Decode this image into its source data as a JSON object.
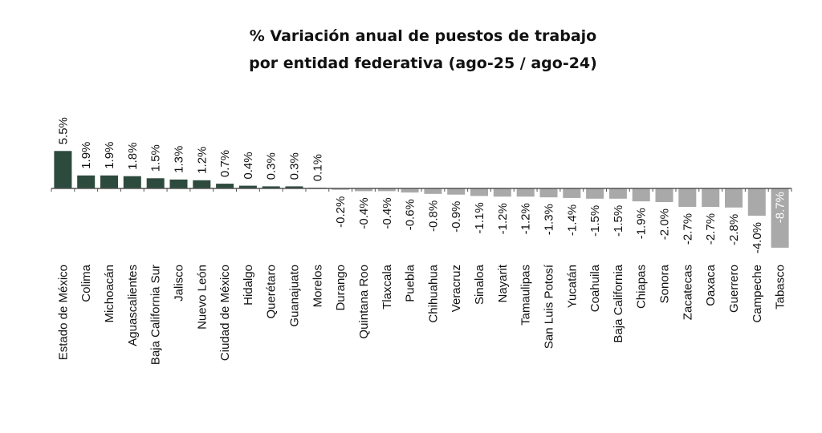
{
  "title": {
    "line1": "% Variación anual de puestos de trabajo",
    "line2": "por entidad federativa (ago-25 / ago-24)"
  },
  "colors": {
    "positive": "#2d4a3e",
    "negative": "#a9a9a9",
    "axis": "#555555"
  },
  "chart_data": {
    "type": "bar",
    "title": "% Variación anual de puestos de trabajo por entidad federativa (ago-25 / ago-24)",
    "xlabel": "",
    "ylabel": "",
    "ylim": [
      -9,
      6
    ],
    "grid": false,
    "categories": [
      "Estado de México",
      "Colima",
      "Michoacán",
      "Aguascalientes",
      "Baja California Sur",
      "Jalisco",
      "Nuevo León",
      "Ciudad de México",
      "Hidalgo",
      "Querétaro",
      "Guanajuato",
      "Morelos",
      "Durango",
      "Quintana Roo",
      "Tlaxcala",
      "Puebla",
      "Chihuahua",
      "Veracruz",
      "Sinaloa",
      "Nayarit",
      "Tamaulipas",
      "San Luis Potosí",
      "Yucatán",
      "Coahuila",
      "Baja California",
      "Chiapas",
      "Sonora",
      "Zacatecas",
      "Oaxaca",
      "Guerrero",
      "Campeche",
      "Tabasco"
    ],
    "values": [
      5.5,
      1.9,
      1.9,
      1.8,
      1.5,
      1.3,
      1.2,
      0.7,
      0.4,
      0.3,
      0.3,
      0.1,
      -0.2,
      -0.4,
      -0.4,
      -0.6,
      -0.8,
      -0.9,
      -1.1,
      -1.2,
      -1.2,
      -1.3,
      -1.4,
      -1.5,
      -1.5,
      -1.9,
      -2.0,
      -2.7,
      -2.7,
      -2.8,
      -4.0,
      -8.7
    ],
    "value_labels": [
      "5.5%",
      "1.9%",
      "1.9%",
      "1.8%",
      "1.5%",
      "1.3%",
      "1.2%",
      "0.7%",
      "0.4%",
      "0.3%",
      "0.3%",
      "0.1%",
      "-0.2%",
      "-0.4%",
      "-0.4%",
      "-0.6%",
      "-0.8%",
      "-0.9%",
      "-1.1%",
      "-1.2%",
      "-1.2%",
      "-1.3%",
      "-1.4%",
      "-1.5%",
      "-1.5%",
      "-1.9%",
      "-2.0%",
      "-2.7%",
      "-2.7%",
      "-2.8%",
      "-4.0%",
      "-8.7%"
    ]
  }
}
